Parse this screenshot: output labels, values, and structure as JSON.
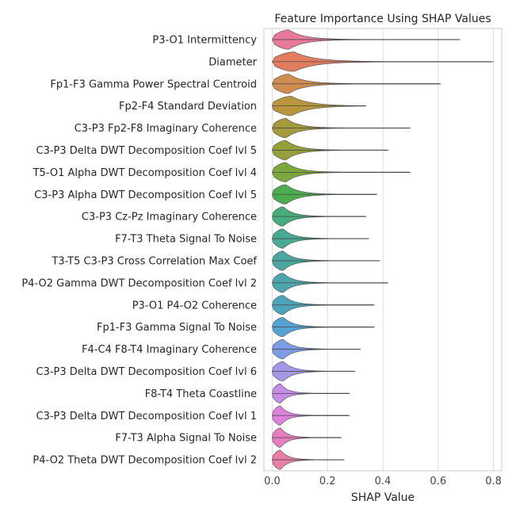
{
  "chart_data": {
    "type": "violin",
    "title": "Feature Importance Using SHAP Values",
    "xlabel": "SHAP Value",
    "ylabel": "",
    "xlim": [
      -0.03,
      0.83
    ],
    "xticks": [
      "0.0",
      "0.2",
      "0.4",
      "0.6",
      "0.8"
    ],
    "xtick_values": [
      0.0,
      0.2,
      0.4,
      0.6,
      0.8
    ],
    "grid": "vertical",
    "features": [
      {
        "label": "P3-O1 Intermittency",
        "max": 0.68,
        "peak": 0.06,
        "color": "#e8799b"
      },
      {
        "label": "Diameter",
        "max": 0.8,
        "peak": 0.08,
        "color": "#e17c5f"
      },
      {
        "label": "Fp1-F3 Gamma Power Spectral Centroid",
        "max": 0.61,
        "peak": 0.06,
        "color": "#d08c4f"
      },
      {
        "label": "Fp2-F4 Standard Deviation",
        "max": 0.34,
        "peak": 0.07,
        "color": "#b9963e"
      },
      {
        "label": "C3-P3 Fp2-F8 Imaginary Coherence",
        "max": 0.5,
        "peak": 0.05,
        "color": "#a59a3c"
      },
      {
        "label": "C3-P3 Delta DWT Decomposition Coef lvl 5",
        "max": 0.42,
        "peak": 0.05,
        "color": "#95a03b"
      },
      {
        "label": "T5-O1 Alpha DWT Decomposition Coef lvl 4",
        "max": 0.5,
        "peak": 0.05,
        "color": "#7ba83d"
      },
      {
        "label": "C3-P3 Alpha DWT Decomposition Coef lvl 5",
        "max": 0.38,
        "peak": 0.05,
        "color": "#4cad4f"
      },
      {
        "label": "C3-P3 Cz-Pz Imaginary Coherence",
        "max": 0.34,
        "peak": 0.04,
        "color": "#47ad7c"
      },
      {
        "label": "F7-T3 Theta Signal To Noise",
        "max": 0.35,
        "peak": 0.04,
        "color": "#48aa92"
      },
      {
        "label": "T3-T5 C3-P3 Cross Correlation Max Coef",
        "max": 0.39,
        "peak": 0.04,
        "color": "#4aa79f"
      },
      {
        "label": "P4-O2 Gamma DWT Decomposition Coef lvl 2",
        "max": 0.42,
        "peak": 0.04,
        "color": "#4ca6ac"
      },
      {
        "label": "P3-O1 P4-O2 Coherence",
        "max": 0.37,
        "peak": 0.04,
        "color": "#4ea5bb"
      },
      {
        "label": "Fp1-F3 Gamma Signal To Noise",
        "max": 0.37,
        "peak": 0.04,
        "color": "#55a2d4"
      },
      {
        "label": "F4-C4 F8-T4 Imaginary Coherence",
        "max": 0.32,
        "peak": 0.04,
        "color": "#7c9ce6"
      },
      {
        "label": "C3-P3 Delta DWT Decomposition Coef lvl 6",
        "max": 0.3,
        "peak": 0.04,
        "color": "#a797e8"
      },
      {
        "label": "F8-T4 Theta Coastline",
        "max": 0.28,
        "peak": 0.03,
        "color": "#c68de6"
      },
      {
        "label": "C3-P3 Delta DWT Decomposition Coef lvl 1",
        "max": 0.28,
        "peak": 0.03,
        "color": "#dd82dc"
      },
      {
        "label": "F7-T3 Alpha Signal To Noise",
        "max": 0.25,
        "peak": 0.03,
        "color": "#e67ec0"
      },
      {
        "label": "P4-O2 Theta DWT Decomposition Coef lvl 2",
        "max": 0.26,
        "peak": 0.03,
        "color": "#e97fa6"
      }
    ]
  }
}
